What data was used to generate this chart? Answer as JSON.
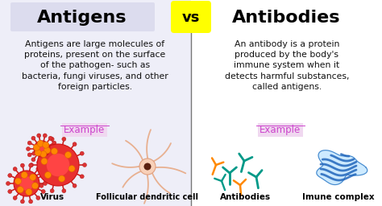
{
  "bg_color": "#ffffff",
  "title_left": "Antigens",
  "title_right": "Antibodies",
  "vs_text": "vs",
  "vs_bg": "#ffff00",
  "title_color": "#000000",
  "title_fontsize": 16,
  "left_body": "Antigens are large molecules of\nproteins, present on the surface\nof the pathogen- such as\nbacteria, fungi viruses, and other\nforeign particles.",
  "right_body": "An antibody is a protein\nproduced by the body's\nimmune system when it\ndetects harmful substances,\ncalled antigens.",
  "body_fontsize": 7.8,
  "example_color": "#cc44cc",
  "example_text": "Example",
  "divider_color": "#777777",
  "label_left1": "Virus",
  "label_left2": "Follicular dendritic cell",
  "label_right1": "Antibodies",
  "label_right2": "Imune complex",
  "label_fontsize": 7.5,
  "left_bg": "#eeeef8",
  "right_bg": "#ffffff"
}
